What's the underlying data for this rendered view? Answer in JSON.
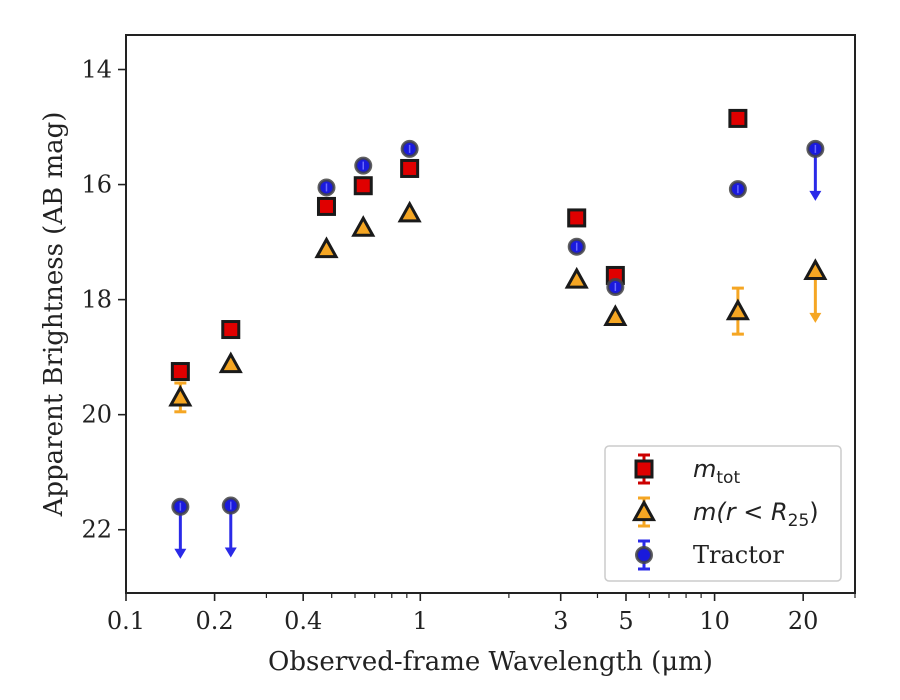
{
  "chart_data": {
    "type": "scatter",
    "xlabel": "Observed-frame Wavelength (μm)",
    "ylabel": "Apparent Brightness (AB mag)",
    "xscale": "log",
    "xlim": [
      0.1,
      30
    ],
    "ylim": [
      23.1,
      13.4
    ],
    "y_inverted": true,
    "x_ticks": [
      {
        "value": 0.1,
        "label": "0.1"
      },
      {
        "value": 0.2,
        "label": "0.2"
      },
      {
        "value": 0.4,
        "label": "0.4"
      },
      {
        "value": 1,
        "label": "1"
      },
      {
        "value": 3,
        "label": "3"
      },
      {
        "value": 5,
        "label": "5"
      },
      {
        "value": 10,
        "label": "10"
      },
      {
        "value": 20,
        "label": "20"
      }
    ],
    "y_ticks": [
      {
        "value": 14,
        "label": "14"
      },
      {
        "value": 16,
        "label": "16"
      },
      {
        "value": 18,
        "label": "18"
      },
      {
        "value": 20,
        "label": "20"
      },
      {
        "value": 22,
        "label": "22"
      }
    ],
    "grid": false,
    "legend_position": "lower-right",
    "series": [
      {
        "name": "m_tot",
        "legend_main": "m",
        "legend_sub": "tot",
        "marker": "square",
        "color": "#e00000",
        "error_color": "#cc0000",
        "points": [
          {
            "x": 0.153,
            "y": 19.25
          },
          {
            "x": 0.227,
            "y": 18.52
          },
          {
            "x": 0.48,
            "y": 16.38
          },
          {
            "x": 0.64,
            "y": 16.02
          },
          {
            "x": 0.92,
            "y": 15.72
          },
          {
            "x": 3.4,
            "y": 16.58
          },
          {
            "x": 4.6,
            "y": 17.58
          },
          {
            "x": 12.0,
            "y": 14.85
          }
        ]
      },
      {
        "name": "m(r < R25)",
        "legend_main": "m(r < R",
        "legend_sub": "25",
        "legend_tail": ")",
        "marker": "triangle",
        "color": "#f5a623",
        "error_color": "#f5a623",
        "points": [
          {
            "x": 0.153,
            "y": 19.7,
            "yerr": 0.25
          },
          {
            "x": 0.227,
            "y": 19.12
          },
          {
            "x": 0.48,
            "y": 17.12
          },
          {
            "x": 0.64,
            "y": 16.75
          },
          {
            "x": 0.92,
            "y": 16.5
          },
          {
            "x": 3.4,
            "y": 17.65
          },
          {
            "x": 4.6,
            "y": 18.3
          },
          {
            "x": 12.0,
            "y": 18.2,
            "yerr": 0.4
          },
          {
            "x": 22.0,
            "y": 17.5,
            "upper_limit": true
          }
        ]
      },
      {
        "name": "Tractor",
        "marker": "circle",
        "color": "#1a1adc",
        "error_color": "#2a2ae8",
        "points": [
          {
            "x": 0.153,
            "y": 21.6,
            "upper_limit": true
          },
          {
            "x": 0.227,
            "y": 21.58,
            "upper_limit": true
          },
          {
            "x": 0.48,
            "y": 16.05
          },
          {
            "x": 0.64,
            "y": 15.67
          },
          {
            "x": 0.92,
            "y": 15.38
          },
          {
            "x": 3.4,
            "y": 17.08
          },
          {
            "x": 4.6,
            "y": 17.78
          },
          {
            "x": 12.0,
            "y": 16.08
          },
          {
            "x": 22.0,
            "y": 15.38,
            "upper_limit": true
          }
        ]
      }
    ]
  }
}
